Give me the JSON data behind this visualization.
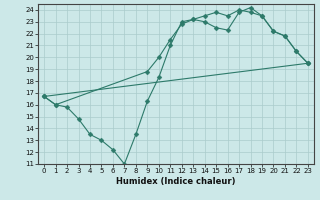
{
  "xlabel": "Humidex (Indice chaleur)",
  "bg_color": "#cce8e8",
  "grid_color": "#aacccc",
  "line_color": "#2d7a6a",
  "xlim": [
    -0.5,
    23.5
  ],
  "ylim": [
    11,
    24.5
  ],
  "xticks": [
    0,
    1,
    2,
    3,
    4,
    5,
    6,
    7,
    8,
    9,
    10,
    11,
    12,
    13,
    14,
    15,
    16,
    17,
    18,
    19,
    20,
    21,
    22,
    23
  ],
  "yticks": [
    11,
    12,
    13,
    14,
    15,
    16,
    17,
    18,
    19,
    20,
    21,
    22,
    23,
    24
  ],
  "series": [
    {
      "x": [
        0,
        1,
        2,
        3,
        4,
        5,
        6,
        7,
        8,
        9,
        10,
        11,
        12,
        13,
        14,
        15,
        16,
        17,
        18,
        19,
        20,
        21,
        22,
        23
      ],
      "y": [
        16.7,
        16.0,
        15.8,
        14.8,
        13.5,
        13.0,
        12.2,
        11.0,
        13.5,
        16.3,
        18.3,
        21.0,
        23.0,
        23.2,
        23.0,
        22.5,
        22.3,
        23.8,
        24.2,
        23.5,
        22.2,
        21.8,
        20.5,
        19.5
      ]
    },
    {
      "x": [
        0,
        1,
        9,
        10,
        11,
        12,
        13,
        14,
        15,
        16,
        17,
        18,
        19,
        20,
        21,
        22,
        23
      ],
      "y": [
        16.7,
        16.0,
        18.8,
        20.0,
        21.5,
        22.8,
        23.2,
        23.5,
        23.8,
        23.5,
        24.0,
        23.8,
        23.5,
        22.2,
        21.8,
        20.5,
        19.5
      ]
    },
    {
      "x": [
        0,
        23
      ],
      "y": [
        16.7,
        19.5
      ]
    }
  ]
}
